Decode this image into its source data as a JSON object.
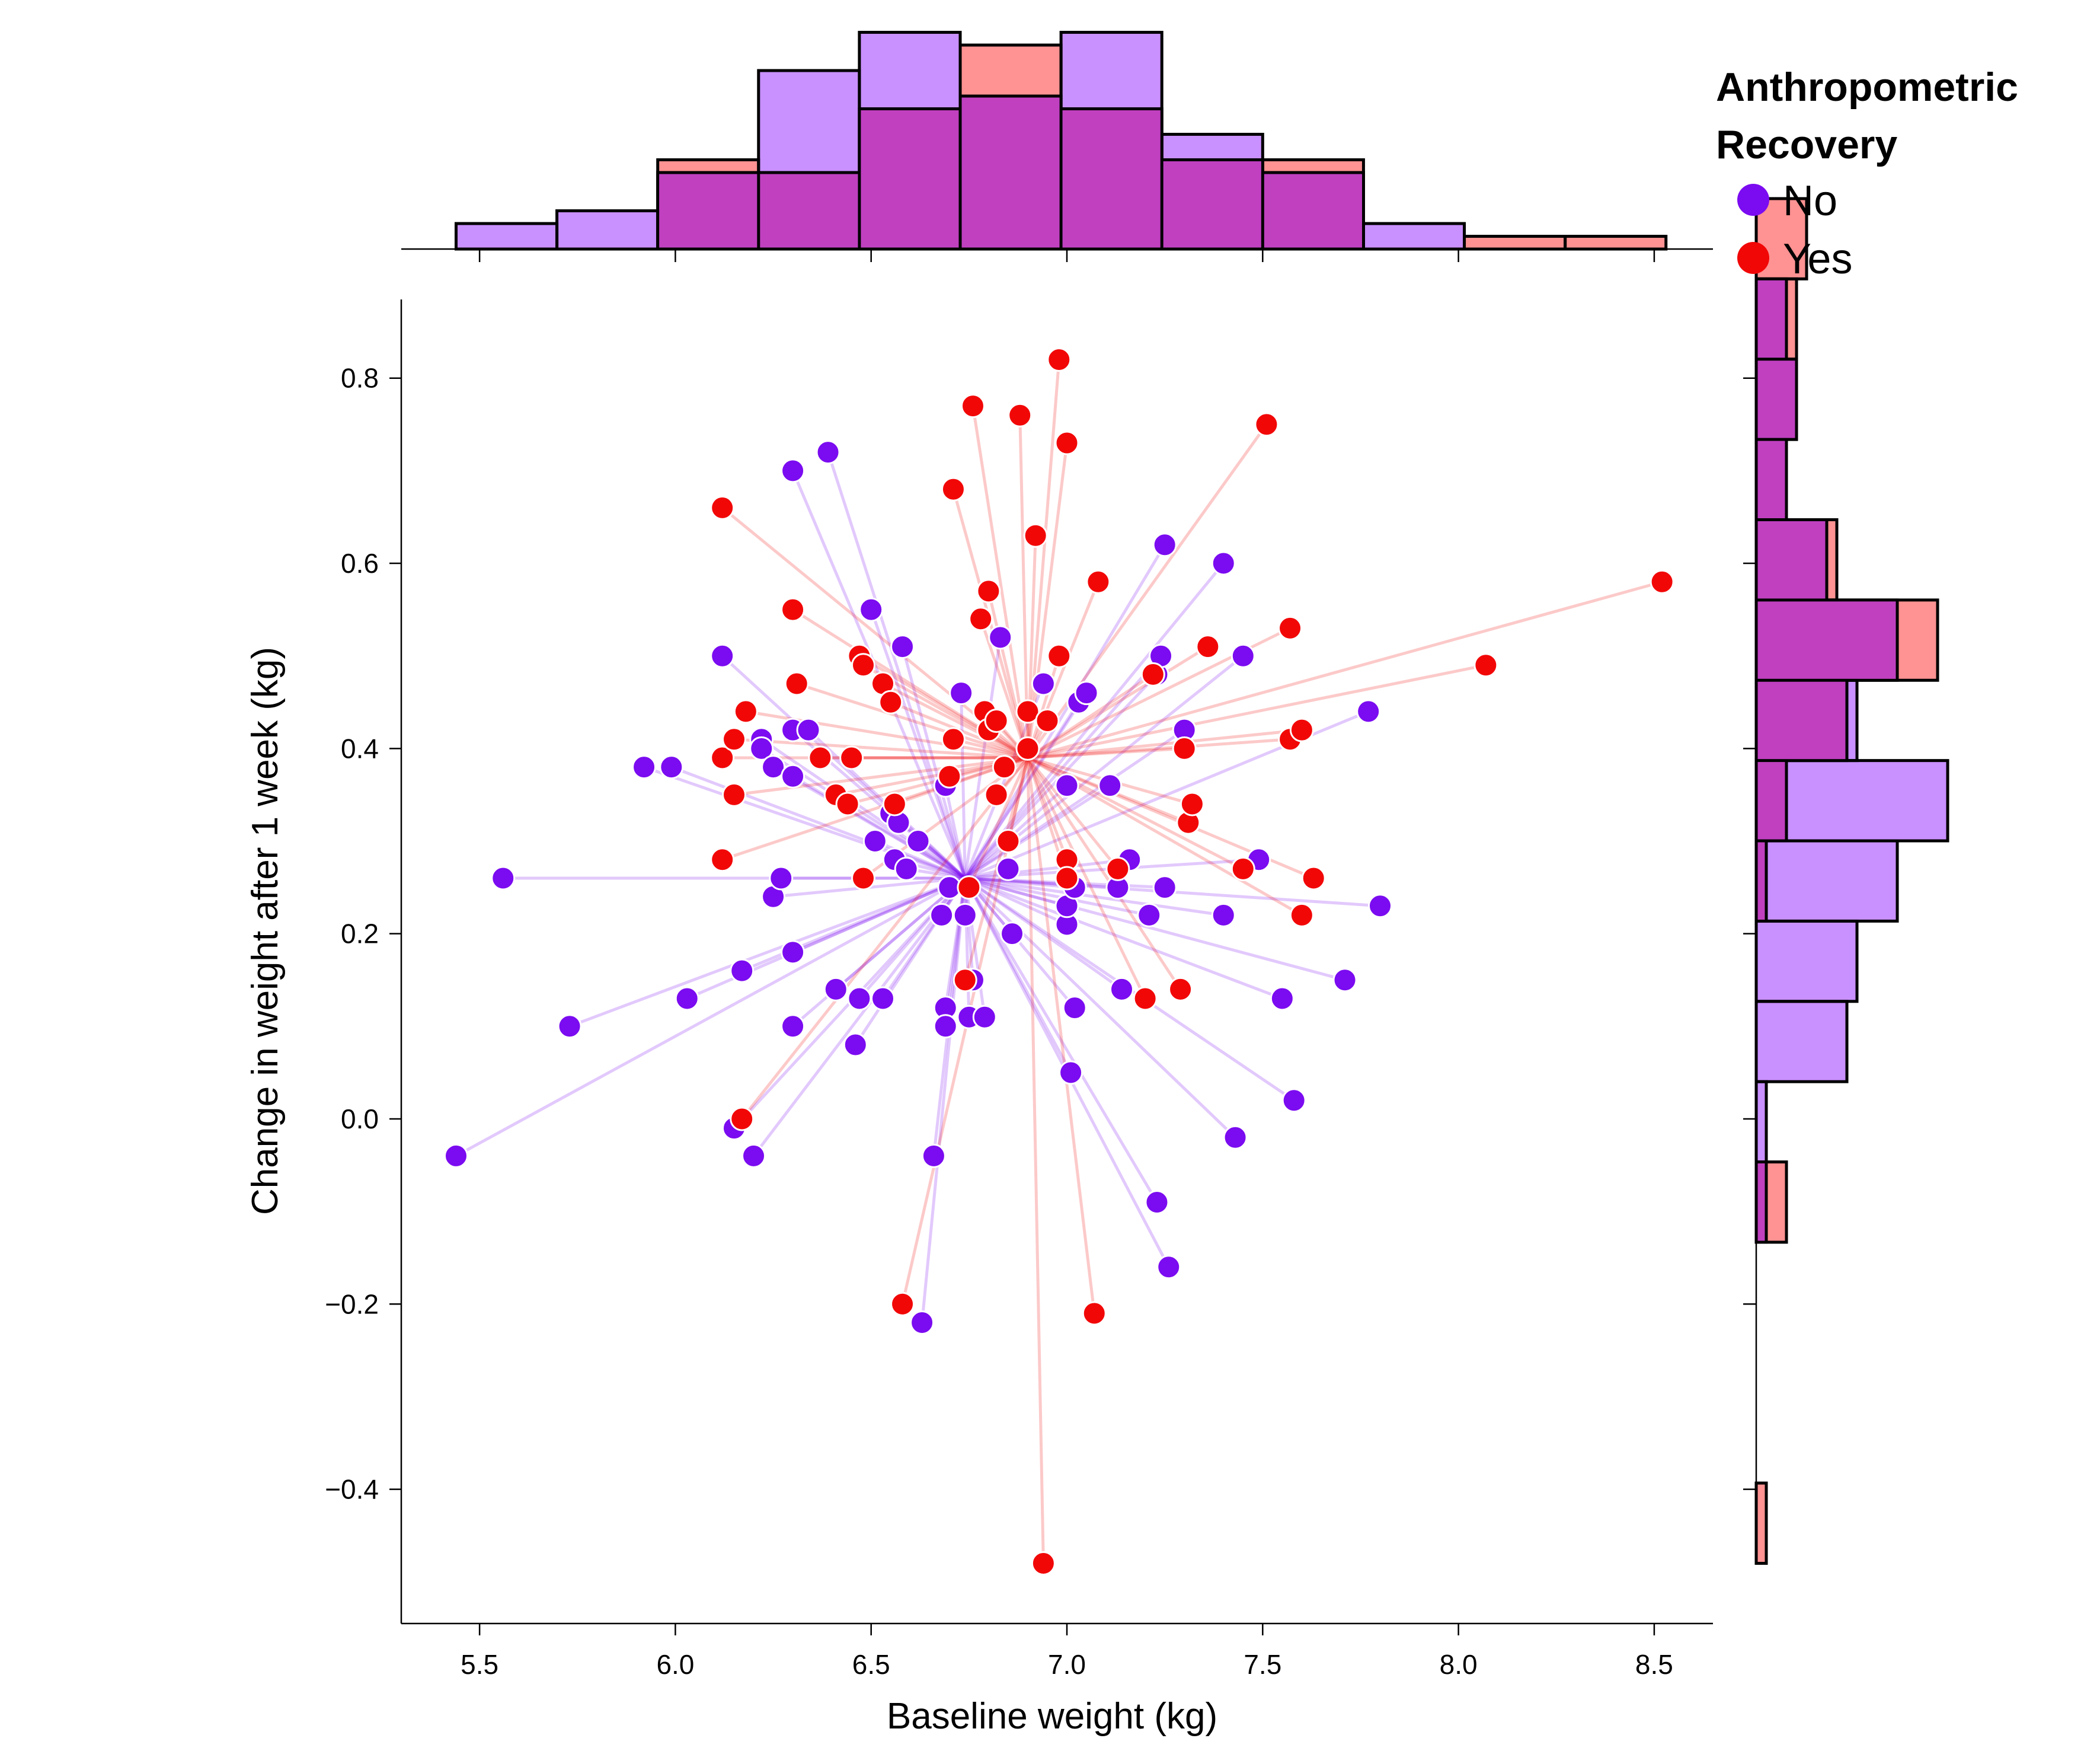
{
  "chart_data": {
    "type": "scatter",
    "xlabel": "Baseline weight (kg)",
    "ylabel": "Change in weight after 1 week (kg)",
    "xlim": [
      5.3,
      8.65
    ],
    "ylim": [
      -0.545,
      0.885
    ],
    "xticks": [
      5.5,
      6.0,
      6.5,
      7.0,
      7.5,
      8.0,
      8.5
    ],
    "xtick_labels": [
      "5.5",
      "6.0",
      "6.5",
      "7.0",
      "7.5",
      "8.0",
      "8.5"
    ],
    "yticks": [
      -0.4,
      -0.2,
      0.0,
      0.2,
      0.4,
      0.6,
      0.8
    ],
    "ytick_labels": [
      "−0.4",
      "−0.2",
      "0.0",
      "0.2",
      "0.4",
      "0.6",
      "0.8"
    ],
    "grid": false,
    "legend": {
      "title": "Anthropometric\nRecovery",
      "placement": "top-right",
      "entries": [
        {
          "label": "No",
          "color": "#7b0bf0"
        },
        {
          "label": "Yes",
          "color": "#f20707"
        }
      ]
    },
    "centroids": {
      "No": {
        "x": 6.74,
        "y": 0.26
      },
      "Yes": {
        "x": 6.9,
        "y": 0.39
      }
    },
    "series": [
      {
        "name": "No",
        "color": "#7b0bf0",
        "hist_fill": "#bf7cff",
        "points": [
          [
            5.44,
            -0.04
          ],
          [
            5.56,
            0.26
          ],
          [
            5.73,
            0.1
          ],
          [
            5.92,
            0.38
          ],
          [
            5.99,
            0.38
          ],
          [
            6.03,
            0.13
          ],
          [
            6.12,
            0.5
          ],
          [
            6.15,
            -0.01
          ],
          [
            6.17,
            0.16
          ],
          [
            6.2,
            -0.04
          ],
          [
            6.22,
            0.41
          ],
          [
            6.22,
            0.4
          ],
          [
            6.25,
            0.38
          ],
          [
            6.25,
            0.24
          ],
          [
            6.27,
            0.26
          ],
          [
            6.3,
            0.37
          ],
          [
            6.3,
            0.18
          ],
          [
            6.3,
            0.1
          ],
          [
            6.3,
            0.42
          ],
          [
            6.3,
            0.7
          ],
          [
            6.34,
            0.42
          ],
          [
            6.39,
            0.72
          ],
          [
            6.41,
            0.14
          ],
          [
            6.46,
            0.08
          ],
          [
            6.47,
            0.13
          ],
          [
            6.5,
            0.55
          ],
          [
            6.51,
            0.3
          ],
          [
            6.53,
            0.13
          ],
          [
            6.55,
            0.33
          ],
          [
            6.56,
            0.28
          ],
          [
            6.57,
            0.32
          ],
          [
            6.58,
            0.51
          ],
          [
            6.59,
            0.27
          ],
          [
            6.62,
            0.3
          ],
          [
            6.66,
            -0.04
          ],
          [
            6.68,
            0.22
          ],
          [
            6.69,
            0.36
          ],
          [
            6.69,
            0.12
          ],
          [
            6.69,
            0.1
          ],
          [
            6.7,
            0.25
          ],
          [
            6.73,
            0.46
          ],
          [
            6.74,
            0.22
          ],
          [
            6.75,
            0.11
          ],
          [
            6.76,
            0.15
          ],
          [
            6.79,
            0.11
          ],
          [
            6.83,
            0.52
          ],
          [
            6.85,
            0.27
          ],
          [
            6.86,
            0.2
          ],
          [
            6.94,
            0.47
          ],
          [
            7.0,
            0.21
          ],
          [
            7.0,
            0.23
          ],
          [
            7.0,
            0.36
          ],
          [
            7.01,
            0.05
          ],
          [
            7.02,
            0.12
          ],
          [
            7.02,
            0.25
          ],
          [
            7.03,
            0.45
          ],
          [
            7.05,
            0.46
          ],
          [
            7.11,
            0.36
          ],
          [
            7.13,
            0.25
          ],
          [
            7.14,
            0.14
          ],
          [
            7.16,
            0.28
          ],
          [
            7.21,
            0.22
          ],
          [
            7.23,
            -0.09
          ],
          [
            7.23,
            0.48
          ],
          [
            7.24,
            0.5
          ],
          [
            7.25,
            0.62
          ],
          [
            7.25,
            0.25
          ],
          [
            7.26,
            -0.16
          ],
          [
            7.3,
            0.42
          ],
          [
            7.4,
            0.6
          ],
          [
            7.4,
            0.22
          ],
          [
            7.43,
            -0.02
          ],
          [
            7.45,
            0.5
          ],
          [
            7.49,
            0.28
          ],
          [
            7.55,
            0.13
          ],
          [
            7.58,
            0.02
          ],
          [
            7.71,
            0.15
          ],
          [
            7.77,
            0.44
          ],
          [
            7.8,
            0.23
          ],
          [
            6.63,
            -0.22
          ]
        ],
        "hist_x": {
          "bin_start": 5.44,
          "bin_width": 0.2575,
          "counts": [
            2,
            3,
            6,
            14,
            17,
            12,
            17,
            9,
            6,
            2,
            0,
            0
          ]
        },
        "hist_y": {
          "bin_start": -0.48,
          "bin_width": 0.0867,
          "counts": [
            0,
            0,
            0,
            0,
            1,
            1,
            9,
            10,
            14,
            19,
            10,
            14,
            7,
            3,
            4,
            3,
            0
          ]
        }
      },
      {
        "name": "Yes",
        "color": "#f20707",
        "hist_fill": "#ff7f7f",
        "points": [
          [
            6.12,
            0.66
          ],
          [
            6.12,
            0.39
          ],
          [
            6.12,
            0.28
          ],
          [
            6.15,
            0.41
          ],
          [
            6.15,
            0.35
          ],
          [
            6.17,
            0.0
          ],
          [
            6.18,
            0.44
          ],
          [
            6.3,
            0.55
          ],
          [
            6.31,
            0.47
          ],
          [
            6.37,
            0.39
          ],
          [
            6.41,
            0.35
          ],
          [
            6.44,
            0.34
          ],
          [
            6.45,
            0.39
          ],
          [
            6.47,
            0.5
          ],
          [
            6.48,
            0.49
          ],
          [
            6.48,
            0.26
          ],
          [
            6.53,
            0.47
          ],
          [
            6.55,
            0.45
          ],
          [
            6.56,
            0.34
          ],
          [
            6.58,
            -0.2
          ],
          [
            6.7,
            0.37
          ],
          [
            6.71,
            0.68
          ],
          [
            6.71,
            0.41
          ],
          [
            6.74,
            0.15
          ],
          [
            6.75,
            0.25
          ],
          [
            6.76,
            0.77
          ],
          [
            6.78,
            0.54
          ],
          [
            6.79,
            0.44
          ],
          [
            6.8,
            0.57
          ],
          [
            6.8,
            0.42
          ],
          [
            6.82,
            0.35
          ],
          [
            6.82,
            0.43
          ],
          [
            6.84,
            0.38
          ],
          [
            6.85,
            0.3
          ],
          [
            6.88,
            0.76
          ],
          [
            6.9,
            0.4
          ],
          [
            6.9,
            0.44
          ],
          [
            6.92,
            0.63
          ],
          [
            6.95,
            0.43
          ],
          [
            6.98,
            0.82
          ],
          [
            6.98,
            0.5
          ],
          [
            7.0,
            0.73
          ],
          [
            7.0,
            0.28
          ],
          [
            7.0,
            0.26
          ],
          [
            7.07,
            -0.21
          ],
          [
            7.08,
            0.58
          ],
          [
            7.13,
            0.27
          ],
          [
            7.2,
            0.13
          ],
          [
            7.22,
            0.48
          ],
          [
            7.29,
            0.14
          ],
          [
            7.3,
            0.4
          ],
          [
            7.31,
            0.32
          ],
          [
            7.32,
            0.34
          ],
          [
            7.36,
            0.51
          ],
          [
            7.45,
            0.27
          ],
          [
            7.51,
            0.75
          ],
          [
            7.57,
            0.53
          ],
          [
            7.57,
            0.41
          ],
          [
            7.6,
            0.42
          ],
          [
            7.6,
            0.22
          ],
          [
            7.63,
            0.26
          ],
          [
            8.07,
            0.49
          ],
          [
            8.52,
            0.58
          ],
          [
            6.94,
            -0.48
          ]
        ],
        "hist_x": {
          "bin_start": 5.44,
          "bin_width": 0.2575,
          "counts": [
            0,
            0,
            7,
            6,
            11,
            16,
            11,
            7,
            7,
            0,
            1,
            1
          ]
        },
        "hist_y": {
          "bin_start": -0.48,
          "bin_width": 0.0867,
          "counts": [
            1,
            0,
            0,
            0,
            3,
            0,
            0,
            0,
            1,
            3,
            9,
            18,
            8,
            3,
            4,
            4,
            5
          ]
        }
      }
    ]
  }
}
